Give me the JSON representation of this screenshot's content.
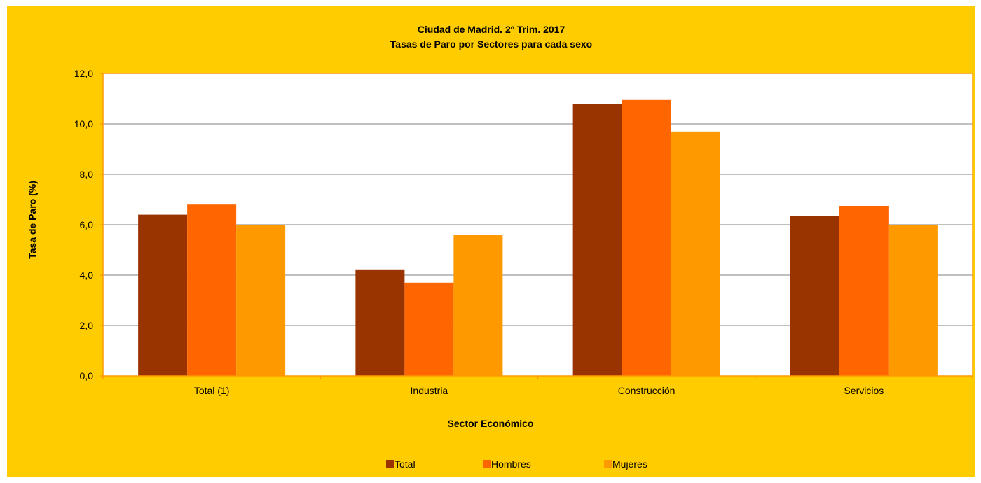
{
  "chart_data": {
    "type": "bar",
    "title": "Ciudad de Madrid. 2º Trim. 2017",
    "subtitle": "Tasas de Paro por Sectores para cada sexo",
    "xlabel": "Sector Económico",
    "ylabel": "Tasa de Paro (%)",
    "ylim": [
      0,
      12
    ],
    "yticks": [
      "0,0",
      "2,0",
      "4,0",
      "6,0",
      "8,0",
      "10,0",
      "12,0"
    ],
    "categories": [
      "Total (1)",
      "Industria",
      "Construcción",
      "Servicios"
    ],
    "series": [
      {
        "name": "Total",
        "color": "#993300",
        "values": [
          6.4,
          4.2,
          10.8,
          6.35
        ]
      },
      {
        "name": "Hombres",
        "color": "#ff6600",
        "values": [
          6.8,
          3.7,
          10.95,
          6.75
        ]
      },
      {
        "name": "Mujeres",
        "color": "#ff9900",
        "values": [
          6.0,
          5.6,
          9.7,
          6.0
        ]
      }
    ],
    "grid": true,
    "legend_position": "bottom",
    "colors": {
      "background": "#ffcc00",
      "plot_area": "#ffffff",
      "axis": "#ff9900",
      "gridline": "#808080"
    }
  }
}
